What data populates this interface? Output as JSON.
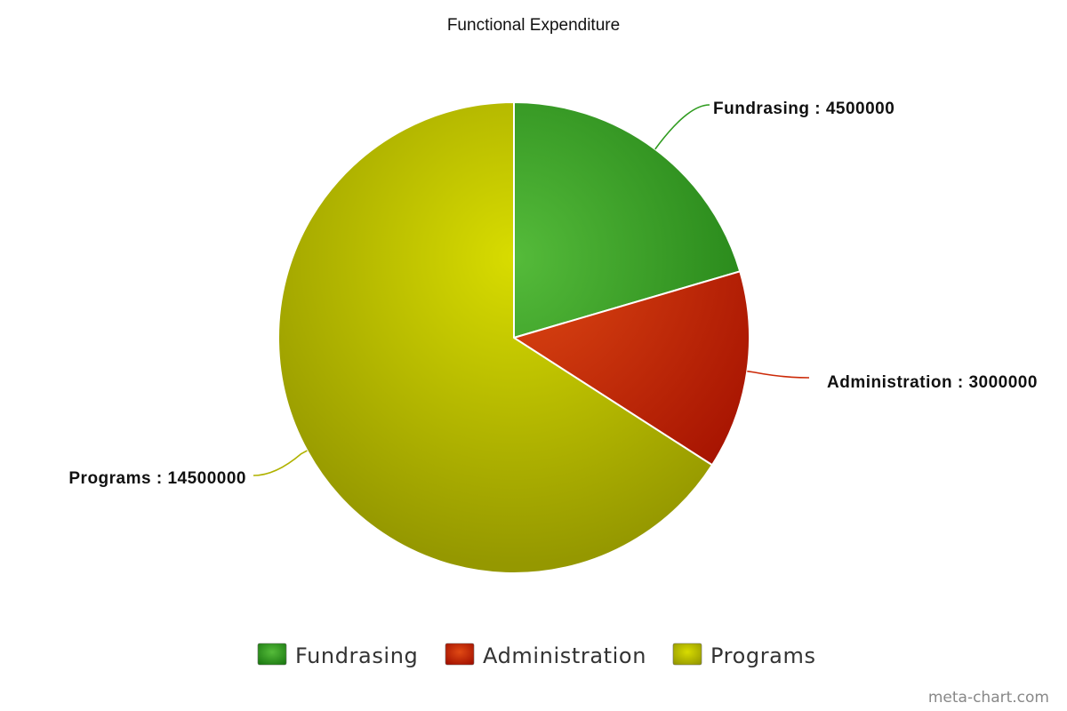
{
  "chart_data": {
    "type": "pie",
    "title": "Functional Expenditure",
    "slices": [
      {
        "name": "Fundrasing",
        "value": 4500000,
        "label": "Fundrasing : 4500000",
        "color": "#2e9b1e",
        "color_light": "#55bb3a",
        "color_dark": "#1c7a12"
      },
      {
        "name": "Administration",
        "value": 3000000,
        "label": "Administration : 3000000",
        "color": "#cc2a08",
        "color_light": "#e04a14",
        "color_dark": "#a31000"
      },
      {
        "name": "Programs",
        "value": 14500000,
        "label": "Programs : 14500000",
        "color": "#b0b200",
        "color_light": "#d8dc00",
        "color_dark": "#959800"
      }
    ],
    "legend": {
      "placement": "bottom",
      "entries": [
        "Fundrasing",
        "Administration",
        "Programs"
      ]
    }
  },
  "credit": "meta-chart.com"
}
